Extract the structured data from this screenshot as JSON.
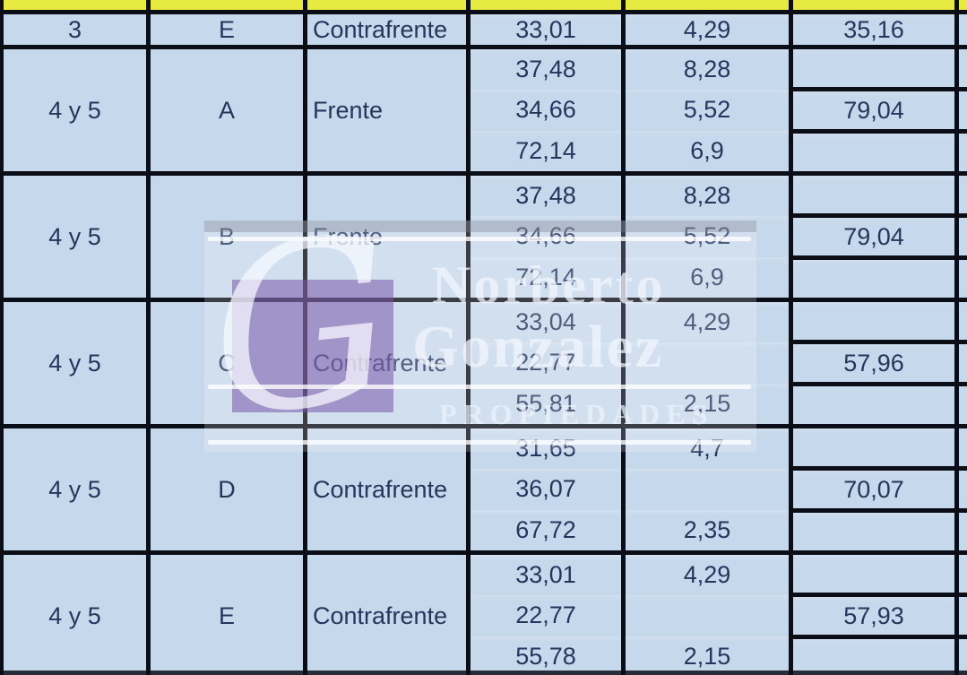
{
  "sheet": {
    "rows": [
      {
        "floor": "3",
        "unit": "E",
        "orientation": "Contrafrente",
        "covered": [
          "33,01"
        ],
        "balcony": [
          "4,29"
        ],
        "total": "35,16"
      },
      {
        "floor": "4 y 5",
        "unit": "A",
        "orientation": "Frente",
        "covered": [
          "37,48",
          "34,66",
          "72,14"
        ],
        "balcony": [
          "8,28",
          "5,52",
          "6,9"
        ],
        "total": "79,04"
      },
      {
        "floor": "4 y 5",
        "unit": "B",
        "orientation": "Frente",
        "covered": [
          "37,48",
          "34,66",
          "72,14"
        ],
        "balcony": [
          "8,28",
          "5,52",
          "6,9"
        ],
        "total": "79,04"
      },
      {
        "floor": "4 y 5",
        "unit": "C",
        "orientation": "Contrafrente",
        "covered": [
          "33,04",
          "22,77",
          "55,81"
        ],
        "balcony": [
          "4,29",
          "",
          "2,15"
        ],
        "total": "57,96"
      },
      {
        "floor": "4 y 5",
        "unit": "D",
        "orientation": "Contrafrente",
        "covered": [
          "31,65",
          "36,07",
          "67,72"
        ],
        "balcony": [
          "4,7",
          "",
          "2,35"
        ],
        "total": "70,07"
      },
      {
        "floor": "4 y 5",
        "unit": "E",
        "orientation": "Contrafrente",
        "covered": [
          "33,01",
          "22,77",
          "55,78"
        ],
        "balcony": [
          "4,29",
          "",
          "2,15"
        ],
        "total": "57,93"
      }
    ]
  },
  "watermark": {
    "monogram": "G",
    "name_line1": "Norberto",
    "name_line2": "Gonzalez",
    "tagline": "PROPIEDADES"
  },
  "colors": {
    "cell_blue": "#c6d8ec",
    "header_yellow": "#e7eb41",
    "grid_line": "#0b0e17",
    "text_navy": "#26355c",
    "monogram_square_purple": "rgba(122,86,170,0.55)",
    "watermark_white": "rgba(240,246,253,0.75)"
  }
}
